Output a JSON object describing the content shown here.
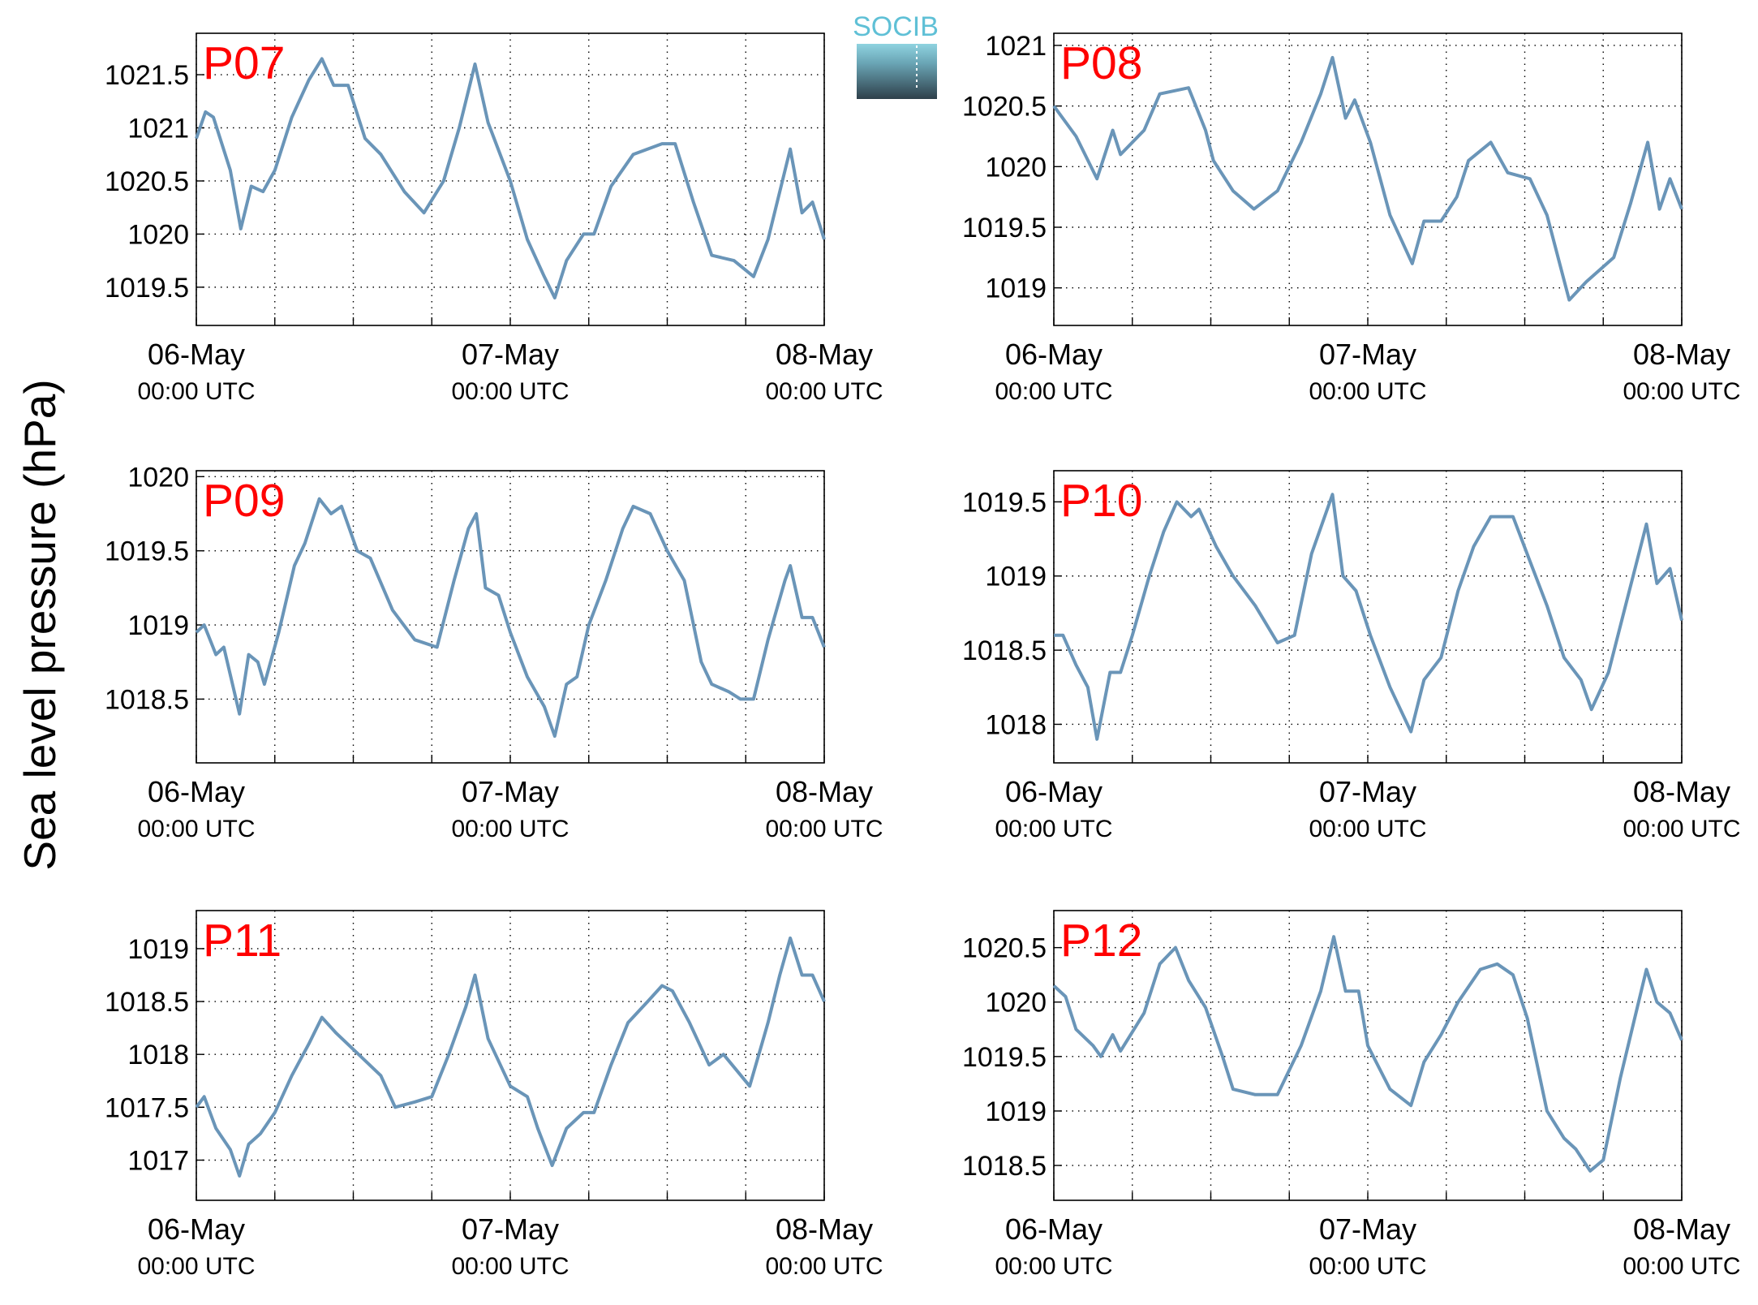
{
  "ylabel": "Sea level pressure (hPa)",
  "logo": "SOCIB",
  "chart_data": [
    {
      "type": "line",
      "title": "P07",
      "title_color": "#ff0000",
      "xlim": [
        0,
        48
      ],
      "xticks": [
        {
          "value": 0,
          "label": "06-May",
          "sublabel": "00:00 UTC"
        },
        {
          "value": 24,
          "label": "07-May",
          "sublabel": "00:00 UTC"
        },
        {
          "value": 48,
          "label": "08-May",
          "sublabel": "00:00 UTC"
        }
      ],
      "xminor": [
        6,
        12,
        18,
        30,
        36,
        42
      ],
      "ylim": [
        1019.14,
        1021.89
      ],
      "yticks": [
        1019.5,
        1020,
        1020.5,
        1021,
        1021.5
      ],
      "grid": true,
      "series": [
        {
          "color": "#6a95b8",
          "x": [
            0,
            0.7,
            1.3,
            2.6,
            3.4,
            4.2,
            5.1,
            6,
            7.3,
            8.6,
            9.6,
            10.5,
            11.6,
            12.9,
            14.1,
            15.9,
            17.4,
            18.9,
            20.1,
            21.3,
            22.3,
            24,
            25.3,
            26.6,
            27.4,
            28.3,
            29.6,
            30.4,
            31.7,
            33.4,
            35.6,
            36.6,
            38,
            39.4,
            41.1,
            42.6,
            43.7,
            45.4,
            46.3,
            47.1,
            48
          ],
          "values": [
            1020.9,
            1021.15,
            1021.1,
            1020.6,
            1020.05,
            1020.45,
            1020.4,
            1020.6,
            1021.1,
            1021.45,
            1021.65,
            1021.4,
            1021.4,
            1020.9,
            1020.75,
            1020.4,
            1020.2,
            1020.5,
            1021.0,
            1021.6,
            1021.05,
            1020.5,
            1019.95,
            1019.6,
            1019.4,
            1019.75,
            1020.0,
            1020.0,
            1020.45,
            1020.75,
            1020.85,
            1020.85,
            1020.3,
            1019.8,
            1019.75,
            1019.6,
            1019.95,
            1020.8,
            1020.2,
            1020.3,
            1019.95
          ]
        }
      ]
    },
    {
      "type": "line",
      "title": "P08",
      "title_color": "#ff0000",
      "xlim": [
        0,
        48
      ],
      "xticks": [
        {
          "value": 0,
          "label": "06-May",
          "sublabel": "00:00 UTC"
        },
        {
          "value": 24,
          "label": "07-May",
          "sublabel": "00:00 UTC"
        },
        {
          "value": 48,
          "label": "08-May",
          "sublabel": "00:00 UTC"
        }
      ],
      "xminor": [
        6,
        12,
        18,
        30,
        36,
        42
      ],
      "ylim": [
        1018.69,
        1021.1
      ],
      "yticks": [
        1019,
        1019.5,
        1020,
        1020.5,
        1021
      ],
      "grid": true,
      "series": [
        {
          "color": "#6a95b8",
          "x": [
            0,
            1.7,
            3.3,
            4.5,
            5.1,
            6.9,
            8.1,
            10.3,
            11.6,
            12.2,
            13.7,
            15.3,
            17.1,
            18.9,
            20.4,
            21.3,
            22.3,
            23,
            24.2,
            25.7,
            27.4,
            28.3,
            29.6,
            30.8,
            31.7,
            33.4,
            34.7,
            36.4,
            37.7,
            39.4,
            40.7,
            42.8,
            44.1,
            45.4,
            46.3,
            47.1,
            48
          ],
          "values": [
            1020.5,
            1020.25,
            1019.9,
            1020.3,
            1020.1,
            1020.3,
            1020.6,
            1020.65,
            1020.3,
            1020.05,
            1019.8,
            1019.65,
            1019.8,
            1020.2,
            1020.6,
            1020.9,
            1020.4,
            1020.55,
            1020.2,
            1019.6,
            1019.2,
            1019.55,
            1019.55,
            1019.75,
            1020.05,
            1020.2,
            1019.95,
            1019.9,
            1019.6,
            1018.9,
            1019.05,
            1019.25,
            1019.7,
            1020.2,
            1019.65,
            1019.9,
            1019.65
          ]
        }
      ]
    },
    {
      "type": "line",
      "title": "P09",
      "title_color": "#ff0000",
      "xlim": [
        0,
        48
      ],
      "xticks": [
        {
          "value": 0,
          "label": "06-May",
          "sublabel": "00:00 UTC"
        },
        {
          "value": 24,
          "label": "07-May",
          "sublabel": "00:00 UTC"
        },
        {
          "value": 48,
          "label": "08-May",
          "sublabel": "00:00 UTC"
        }
      ],
      "xminor": [
        6,
        12,
        18,
        30,
        36,
        42
      ],
      "ylim": [
        1018.07,
        1020.04
      ],
      "yticks": [
        1018.5,
        1019,
        1019.5,
        1020
      ],
      "grid": true,
      "series": [
        {
          "color": "#6a95b8",
          "x": [
            0,
            0.6,
            1.5,
            2.1,
            3.3,
            4,
            4.7,
            5.2,
            6.3,
            7.5,
            8.3,
            9.4,
            10.3,
            11.1,
            12.3,
            13.3,
            15,
            16.7,
            18.4,
            19.7,
            20.8,
            21.4,
            22.1,
            23.1,
            24,
            25.3,
            26.6,
            27.4,
            28.3,
            29.1,
            30,
            31.3,
            32.6,
            33.4,
            34.7,
            36,
            37.3,
            38.6,
            39.4,
            40.7,
            41.6,
            42.6,
            43.7,
            45,
            45.4,
            46.3,
            47.1,
            48
          ],
          "values": [
            1018.95,
            1019.0,
            1018.8,
            1018.85,
            1018.4,
            1018.8,
            1018.75,
            1018.6,
            1018.95,
            1019.4,
            1019.55,
            1019.85,
            1019.75,
            1019.8,
            1019.5,
            1019.45,
            1019.1,
            1018.9,
            1018.85,
            1019.3,
            1019.65,
            1019.75,
            1019.25,
            1019.2,
            1018.95,
            1018.65,
            1018.45,
            1018.25,
            1018.6,
            1018.65,
            1019.0,
            1019.3,
            1019.65,
            1019.8,
            1019.75,
            1019.5,
            1019.3,
            1018.75,
            1018.6,
            1018.55,
            1018.5,
            1018.5,
            1018.9,
            1019.3,
            1019.4,
            1019.05,
            1019.05,
            1018.85
          ]
        }
      ]
    },
    {
      "type": "line",
      "title": "P10",
      "title_color": "#ff0000",
      "xlim": [
        0,
        48
      ],
      "xticks": [
        {
          "value": 0,
          "label": "06-May",
          "sublabel": "00:00 UTC"
        },
        {
          "value": 24,
          "label": "07-May",
          "sublabel": "00:00 UTC"
        },
        {
          "value": 48,
          "label": "08-May",
          "sublabel": "00:00 UTC"
        }
      ],
      "xminor": [
        6,
        12,
        18,
        30,
        36,
        42
      ],
      "ylim": [
        1017.74,
        1019.71
      ],
      "yticks": [
        1018,
        1018.5,
        1019,
        1019.5
      ],
      "grid": true,
      "series": [
        {
          "color": "#6a95b8",
          "x": [
            0,
            0.7,
            1.7,
            2.6,
            3.3,
            4.3,
            5.1,
            6,
            7.3,
            8.4,
            9.4,
            10.5,
            11.1,
            12.4,
            13.7,
            15.4,
            17.1,
            18.4,
            19.7,
            21.3,
            22.1,
            23.1,
            24.2,
            25.7,
            27.3,
            28.3,
            29.6,
            30.9,
            32.1,
            33.4,
            35.1,
            36.4,
            37.7,
            39,
            40.3,
            41.1,
            42.4,
            43.7,
            45.3,
            46.1,
            47.1,
            48
          ],
          "values": [
            1018.6,
            1018.6,
            1018.4,
            1018.25,
            1017.9,
            1018.35,
            1018.35,
            1018.6,
            1019.0,
            1019.3,
            1019.5,
            1019.4,
            1019.45,
            1019.2,
            1019.0,
            1018.8,
            1018.55,
            1018.6,
            1019.15,
            1019.55,
            1019.0,
            1018.9,
            1018.6,
            1018.25,
            1017.95,
            1018.3,
            1018.45,
            1018.9,
            1019.2,
            1019.4,
            1019.4,
            1019.1,
            1018.8,
            1018.45,
            1018.3,
            1018.1,
            1018.35,
            1018.8,
            1019.35,
            1018.95,
            1019.05,
            1018.7
          ]
        }
      ]
    },
    {
      "type": "line",
      "title": "P11",
      "title_color": "#ff0000",
      "xlim": [
        0,
        48
      ],
      "xticks": [
        {
          "value": 0,
          "label": "06-May",
          "sublabel": "00:00 UTC"
        },
        {
          "value": 24,
          "label": "07-May",
          "sublabel": "00:00 UTC"
        },
        {
          "value": 48,
          "label": "08-May",
          "sublabel": "00:00 UTC"
        }
      ],
      "xminor": [
        6,
        12,
        18,
        30,
        36,
        42
      ],
      "ylim": [
        1016.62,
        1019.36
      ],
      "yticks": [
        1017,
        1017.5,
        1018,
        1018.5,
        1019
      ],
      "grid": true,
      "series": [
        {
          "color": "#6a95b8",
          "x": [
            0,
            0.6,
            1.5,
            2.6,
            3.3,
            4,
            4.9,
            6,
            7.3,
            8.6,
            9.6,
            10.7,
            12.4,
            14.1,
            15.2,
            16.7,
            18,
            19.3,
            20.6,
            21.3,
            22.3,
            24,
            25.3,
            26.1,
            27.2,
            28.3,
            29.6,
            30.4,
            31.7,
            33,
            34.5,
            35.6,
            36.4,
            37.7,
            39.2,
            40.3,
            42.3,
            43.7,
            44.6,
            45.4,
            46.3,
            47.1,
            48
          ],
          "values": [
            1017.5,
            1017.6,
            1017.3,
            1017.1,
            1016.85,
            1017.15,
            1017.25,
            1017.45,
            1017.8,
            1018.1,
            1018.35,
            1018.2,
            1018.0,
            1017.8,
            1017.5,
            1017.55,
            1017.6,
            1018.0,
            1018.45,
            1018.75,
            1018.15,
            1017.7,
            1017.6,
            1017.3,
            1016.95,
            1017.3,
            1017.45,
            1017.45,
            1017.9,
            1018.3,
            1018.5,
            1018.65,
            1018.6,
            1018.3,
            1017.9,
            1018.0,
            1017.7,
            1018.3,
            1018.75,
            1019.1,
            1018.75,
            1018.75,
            1018.5
          ]
        }
      ]
    },
    {
      "type": "line",
      "title": "P12",
      "title_color": "#ff0000",
      "xlim": [
        0,
        48
      ],
      "xticks": [
        {
          "value": 0,
          "label": "06-May",
          "sublabel": "00:00 UTC"
        },
        {
          "value": 24,
          "label": "07-May",
          "sublabel": "00:00 UTC"
        },
        {
          "value": 48,
          "label": "08-May",
          "sublabel": "00:00 UTC"
        }
      ],
      "xminor": [
        6,
        12,
        18,
        30,
        36,
        42
      ],
      "ylim": [
        1018.18,
        1020.84
      ],
      "yticks": [
        1018.5,
        1019,
        1019.5,
        1020,
        1020.5
      ],
      "grid": true,
      "series": [
        {
          "color": "#6a95b8",
          "x": [
            0,
            0.9,
            1.7,
            3,
            3.6,
            4.5,
            5.1,
            6.9,
            8.1,
            9.3,
            10.3,
            11.6,
            12.9,
            13.7,
            15.4,
            17.1,
            18.9,
            20.4,
            21.4,
            22.3,
            23.3,
            24,
            25.7,
            27.3,
            28.3,
            29.6,
            30.9,
            32.6,
            33.9,
            35.1,
            36.2,
            37.7,
            39,
            39.9,
            41,
            42,
            43.3,
            44.6,
            45.3,
            46.1,
            47.1,
            48
          ],
          "values": [
            1020.15,
            1020.05,
            1019.75,
            1019.6,
            1019.5,
            1019.7,
            1019.55,
            1019.9,
            1020.35,
            1020.5,
            1020.2,
            1019.95,
            1019.5,
            1019.2,
            1019.15,
            1019.15,
            1019.6,
            1020.1,
            1020.6,
            1020.1,
            1020.1,
            1019.6,
            1019.2,
            1019.05,
            1019.45,
            1019.7,
            1020.0,
            1020.3,
            1020.35,
            1020.25,
            1019.85,
            1019.0,
            1018.75,
            1018.65,
            1018.45,
            1018.55,
            1019.3,
            1019.95,
            1020.3,
            1020.0,
            1019.9,
            1019.65
          ]
        }
      ]
    }
  ]
}
